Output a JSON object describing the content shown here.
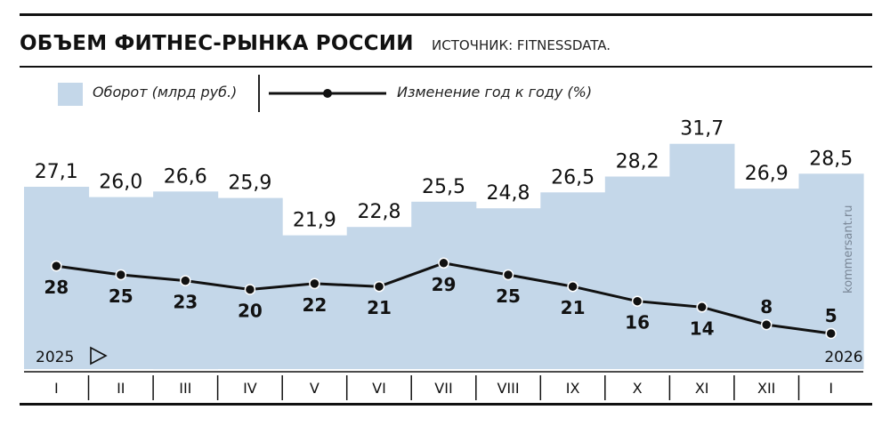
{
  "header": {
    "title": "ОБЪЕМ ФИТНЕС-РЫНКА РОССИИ",
    "source": "ИСТОЧНИК: FITNESSDATA."
  },
  "legend": {
    "bar_label": "Оборот (млрд руб.)",
    "line_label": "Изменение год к году (%)"
  },
  "watermark": "kommersant.ru",
  "colors": {
    "bar": "#c4d7e9",
    "line": "#111111",
    "text": "#111111"
  },
  "chart_data": {
    "type": "bar",
    "categories": [
      "I",
      "II",
      "III",
      "IV",
      "V",
      "VI",
      "VII",
      "VIII",
      "IX",
      "X",
      "XI",
      "XII",
      "I"
    ],
    "period_labels": {
      "start": "2025",
      "end": "2026"
    },
    "series": [
      {
        "name": "Оборот (млрд руб.)",
        "type": "bar",
        "values": [
          27.1,
          26.0,
          26.6,
          25.9,
          21.9,
          22.8,
          25.5,
          24.8,
          26.5,
          28.2,
          31.7,
          26.9,
          28.5
        ],
        "value_labels": [
          "27,1",
          "26,0",
          "26,6",
          "25,9",
          "21,9",
          "22,8",
          "25,5",
          "24,8",
          "26,5",
          "28,2",
          "31,7",
          "26,9",
          "28,5"
        ]
      },
      {
        "name": "Изменение год к году (%)",
        "type": "line",
        "values": [
          28,
          25,
          23,
          20,
          22,
          21,
          29,
          25,
          21,
          16,
          14,
          8,
          5
        ],
        "value_labels": [
          "28",
          "25",
          "23",
          "20",
          "22",
          "21",
          "29",
          "25",
          "21",
          "16",
          "14",
          "8",
          "5"
        ]
      }
    ]
  }
}
